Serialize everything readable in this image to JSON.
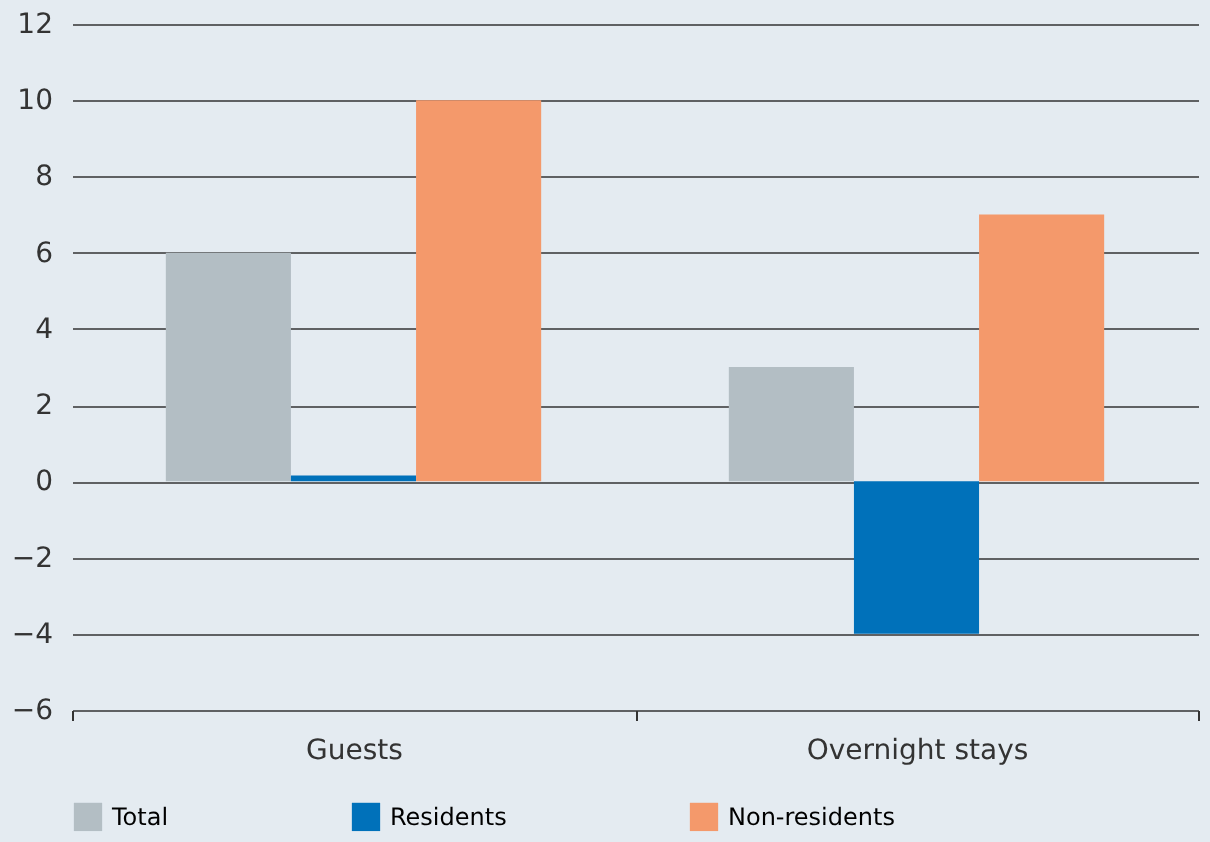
{
  "chart_data": {
    "type": "bar",
    "categories": [
      "Guests",
      "Overnight stays"
    ],
    "series": [
      {
        "name": "Total",
        "color": "#b3bec4",
        "values": [
          6,
          3
        ]
      },
      {
        "name": "Residents",
        "color": "#0071ba",
        "values": [
          0.15,
          -4
        ]
      },
      {
        "name": "Non-residents",
        "color": "#f4996b",
        "values": [
          10,
          7
        ]
      }
    ],
    "ylim": [
      -6,
      12
    ],
    "yticks": [
      -6,
      -4,
      -2,
      0,
      2,
      4,
      6,
      8,
      10,
      12
    ],
    "grid": "y",
    "legend": "bottom"
  }
}
